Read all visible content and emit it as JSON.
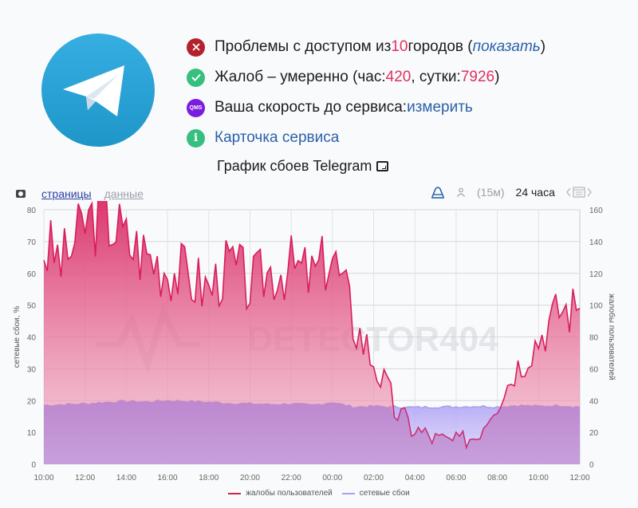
{
  "service": {
    "name": "Telegram",
    "logo": "telegram-logo"
  },
  "status": [
    {
      "icon": "error-x-icon",
      "parts": [
        "Проблемы с доступом из ",
        "10",
        " городов (",
        "показать",
        ")"
      ]
    },
    {
      "icon": "check-icon",
      "parts": [
        "Жалоб – умеренно (час: ",
        "420",
        ", сутки: ",
        "7926",
        ")"
      ]
    },
    {
      "icon": "qms-icon",
      "icon_text": "QMS",
      "parts": [
        "Ваша скорость до сервиса: ",
        "измерить"
      ]
    },
    {
      "icon": "info-icon",
      "icon_text": "i",
      "parts": [
        "Карточка сервиса"
      ]
    }
  ],
  "chart_header": {
    "title": "График сбоев Telegram",
    "title_icon": "screen-icon"
  },
  "toolbar": {
    "tab_pages": "страницы",
    "tab_data": "данные",
    "interval": "(15м)",
    "period": "24 часа"
  },
  "colors": {
    "complaints": "#d81e5b",
    "network": "#9e9cf0",
    "link": "#2b61a8",
    "number": "#e0325f",
    "telegram": "#2ca3e0"
  },
  "chart_data": {
    "type": "area",
    "title": "График сбоев Telegram",
    "xlabel": "",
    "ylabel": "сетевые сбои, %",
    "y2label": "жалобы пользователей",
    "ylim": [
      0,
      80
    ],
    "y2lim": [
      0,
      160
    ],
    "yticks": [
      0,
      10,
      20,
      30,
      40,
      50,
      60,
      70,
      80
    ],
    "y2ticks": [
      0,
      20,
      40,
      60,
      80,
      100,
      120,
      140,
      160
    ],
    "xticks": [
      "10:00",
      "12:00",
      "14:00",
      "16:00",
      "18:00",
      "20:00",
      "22:00",
      "00:00",
      "02:00",
      "04:00",
      "06:00",
      "08:00",
      "10:00",
      "12:00"
    ],
    "grid": true,
    "legend_position": "bottom",
    "watermark": "DETECTOR404",
    "x_hours_from_start": [
      0,
      1,
      2,
      3,
      4,
      5,
      6,
      7,
      8,
      9,
      10,
      11,
      12,
      13,
      14,
      15,
      16,
      17,
      18,
      19,
      20,
      21,
      22,
      23,
      24,
      25,
      26
    ],
    "series": [
      {
        "name": "жалобы пользователей",
        "axis": "right",
        "values": [
          136,
          128,
          152,
          158,
          140,
          132,
          124,
          118,
          110,
          126,
          112,
          122,
          124,
          118,
          132,
          90,
          66,
          34,
          22,
          16,
          14,
          18,
          40,
          62,
          80,
          98,
          98
        ]
      },
      {
        "name": "сетевые сбои",
        "axis": "left",
        "values": [
          18.5,
          18.8,
          19.0,
          19.5,
          19.8,
          19.6,
          20.0,
          19.8,
          19.5,
          19.2,
          19.0,
          18.8,
          19.0,
          18.5,
          19.5,
          18.0,
          18.2,
          18.0,
          17.8,
          18.0,
          18.0,
          18.2,
          18.0,
          18.5,
          18.2,
          18.5,
          18.0
        ]
      }
    ]
  },
  "legend": {
    "complaints": "жалобы пользователей",
    "network": "сетевые сбои"
  }
}
